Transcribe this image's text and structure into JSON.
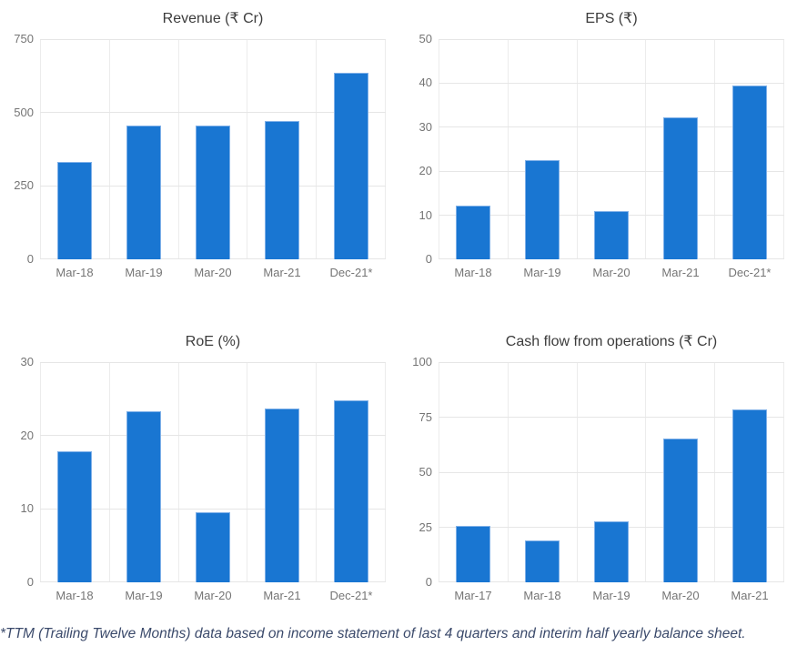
{
  "page": {
    "background": "#ffffff"
  },
  "colors": {
    "bar": "#1976d2",
    "bar_border": "#7fb0e8",
    "gridline": "#e6e6e6",
    "tick_label": "#757575",
    "title": "#3c3c3c",
    "footnote": "#3b4a6b"
  },
  "footnote": {
    "text": "*TTM (Trailing Twelve Months) data based on income statement of last 4 quarters and interim half yearly balance sheet."
  },
  "chart_data": [
    {
      "type": "bar",
      "title": "Revenue (₹ Cr)",
      "categories": [
        "Mar-18",
        "Mar-19",
        "Mar-20",
        "Mar-21",
        "Dec-21*"
      ],
      "values": [
        333,
        457,
        455,
        471,
        634
      ],
      "xlabel": "",
      "ylabel": "",
      "ylim": [
        0,
        750
      ],
      "yticks": [
        0,
        250,
        500,
        750
      ],
      "grid": true,
      "legend": "none"
    },
    {
      "type": "bar",
      "title": "EPS (₹)",
      "categories": [
        "Mar-18",
        "Mar-19",
        "Mar-20",
        "Mar-21",
        "Dec-21*"
      ],
      "values": [
        12.1,
        22.5,
        11,
        32.3,
        39.5
      ],
      "xlabel": "",
      "ylabel": "",
      "ylim": [
        0,
        50
      ],
      "yticks": [
        0,
        10,
        20,
        30,
        40,
        50
      ],
      "grid": true,
      "legend": "none"
    },
    {
      "type": "bar",
      "title": "RoE (%)",
      "categories": [
        "Mar-18",
        "Mar-19",
        "Mar-20",
        "Mar-21",
        "Dec-21*"
      ],
      "values": [
        17.8,
        23.3,
        9.6,
        23.7,
        24.8
      ],
      "xlabel": "",
      "ylabel": "",
      "ylim": [
        0,
        30
      ],
      "yticks": [
        0,
        10,
        20,
        30
      ],
      "grid": true,
      "legend": "none"
    },
    {
      "type": "bar",
      "title": "Cash flow from operations (₹ Cr)",
      "categories": [
        "Mar-17",
        "Mar-18",
        "Mar-19",
        "Mar-20",
        "Mar-21"
      ],
      "values": [
        25.5,
        19,
        27.7,
        65.5,
        78.5
      ],
      "xlabel": "",
      "ylabel": "",
      "ylim": [
        0,
        100
      ],
      "yticks": [
        0,
        25,
        50,
        75,
        100
      ],
      "grid": true,
      "legend": "none"
    }
  ]
}
